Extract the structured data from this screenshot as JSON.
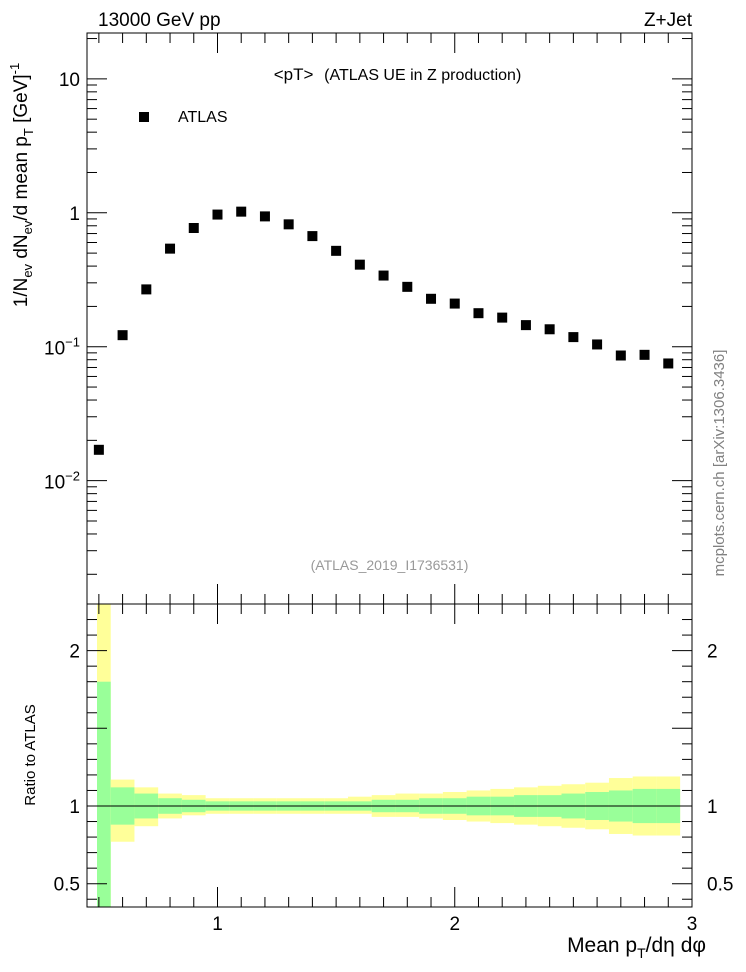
{
  "header": {
    "energy_label": "13000 GeV pp",
    "process_label": "Z+Jet"
  },
  "side_label": "mcplots.cern.ch [arXiv:1306.3436]",
  "chart_data": [
    {
      "type": "scatter",
      "title": "<pT>",
      "subtitle": "(ATLAS UE in Z production)",
      "analysis_tag": "(ATLAS_2019_I1736531)",
      "ylabel_parts": {
        "main": "1/N",
        "sub1": "ev",
        "mid": " dN",
        "sub2": "ev",
        "mid2": "/d mean p",
        "sub3": "T",
        "unit": " [GeV]",
        "sup": "-1"
      },
      "xscale": "linear",
      "yscale": "log",
      "xlim": [
        0.45,
        3.0
      ],
      "ylim": [
        0.0012,
        22
      ],
      "yticks": [
        {
          "value": 10,
          "label": "10"
        },
        {
          "value": 1,
          "label": "1"
        },
        {
          "value": 0.1,
          "base": "10",
          "exp": "−1"
        },
        {
          "value": 0.01,
          "base": "10",
          "exp": "−2"
        }
      ],
      "legend": {
        "position": "top-left",
        "entries": [
          {
            "name": "ATLAS",
            "marker": "square",
            "color": "#000000"
          }
        ]
      },
      "series": [
        {
          "name": "ATLAS",
          "x": [
            0.5,
            0.6,
            0.7,
            0.8,
            0.9,
            1.0,
            1.1,
            1.2,
            1.3,
            1.4,
            1.5,
            1.6,
            1.7,
            1.8,
            1.9,
            2.0,
            2.1,
            2.2,
            2.3,
            2.4,
            2.5,
            2.6,
            2.7,
            2.8,
            2.9
          ],
          "y": [
            0.017,
            0.122,
            0.268,
            0.54,
            0.77,
            0.97,
            1.02,
            0.94,
            0.82,
            0.67,
            0.52,
            0.41,
            0.34,
            0.28,
            0.228,
            0.21,
            0.178,
            0.165,
            0.145,
            0.135,
            0.118,
            0.104,
            0.086,
            0.087,
            0.075
          ]
        }
      ]
    },
    {
      "type": "area",
      "ylabel": "Ratio to ATLAS",
      "xlabel_parts": {
        "main": "Mean p",
        "sub": "T",
        "rest": "/dη dφ"
      },
      "xlim": [
        0.45,
        3.0
      ],
      "ylim": [
        0.35,
        2.3
      ],
      "xticks": [
        {
          "value": 1,
          "label": "1"
        },
        {
          "value": 2,
          "label": "2"
        },
        {
          "value": 3,
          "label": "3"
        }
      ],
      "yticks": [
        {
          "value": 2,
          "label": "2"
        },
        {
          "value": 1,
          "label": "1"
        },
        {
          "value": 0.5,
          "label": "0.5"
        }
      ],
      "reference_line": 1,
      "colors": {
        "inner_band": "#99ff99",
        "outer_band": "#ffff99"
      },
      "bands": {
        "x_edges": [
          0.45,
          0.55,
          0.65,
          0.75,
          0.85,
          0.95,
          1.05,
          1.15,
          1.25,
          1.35,
          1.45,
          1.55,
          1.65,
          1.75,
          1.85,
          1.95,
          2.05,
          2.15,
          2.25,
          2.35,
          2.45,
          2.55,
          2.65,
          2.75,
          2.85,
          2.95
        ],
        "inner_low": [
          0.35,
          0.88,
          0.92,
          0.95,
          0.96,
          0.97,
          0.97,
          0.97,
          0.97,
          0.97,
          0.97,
          0.97,
          0.96,
          0.96,
          0.95,
          0.95,
          0.94,
          0.94,
          0.93,
          0.93,
          0.92,
          0.91,
          0.9,
          0.89,
          0.89
        ],
        "inner_high": [
          1.8,
          1.12,
          1.08,
          1.05,
          1.04,
          1.03,
          1.03,
          1.03,
          1.03,
          1.03,
          1.03,
          1.03,
          1.04,
          1.04,
          1.05,
          1.05,
          1.06,
          1.06,
          1.07,
          1.07,
          1.08,
          1.09,
          1.1,
          1.11,
          1.11
        ],
        "outer_low": [
          0.35,
          0.77,
          0.87,
          0.92,
          0.94,
          0.95,
          0.95,
          0.95,
          0.95,
          0.95,
          0.95,
          0.95,
          0.93,
          0.93,
          0.92,
          0.91,
          0.9,
          0.89,
          0.88,
          0.87,
          0.86,
          0.85,
          0.82,
          0.81,
          0.81
        ],
        "outer_high": [
          2.3,
          1.17,
          1.12,
          1.08,
          1.07,
          1.05,
          1.05,
          1.05,
          1.05,
          1.05,
          1.05,
          1.06,
          1.07,
          1.08,
          1.08,
          1.09,
          1.1,
          1.11,
          1.12,
          1.13,
          1.14,
          1.15,
          1.18,
          1.19,
          1.19
        ]
      }
    }
  ]
}
